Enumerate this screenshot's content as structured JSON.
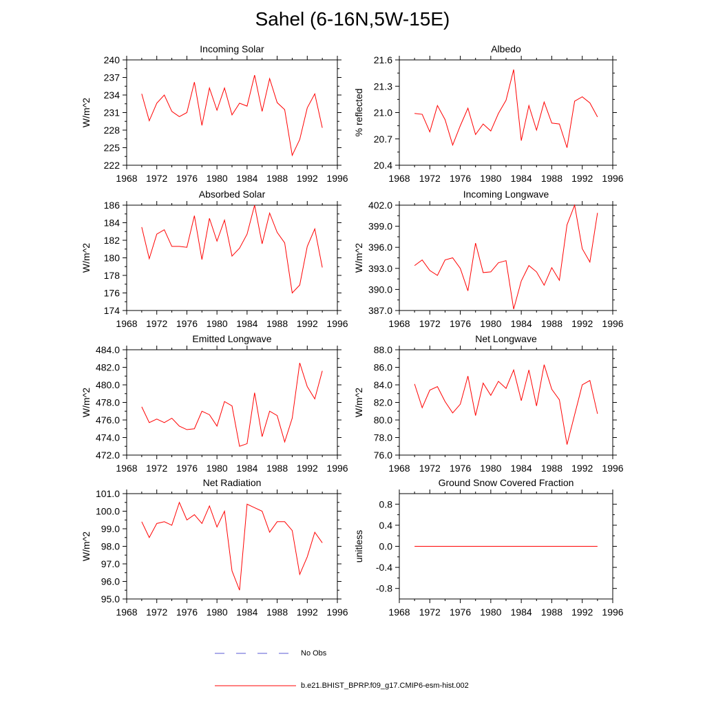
{
  "figure": {
    "title": "Sahel (6-16N,5W-15E)",
    "line_color": "#ff0000",
    "obs_color": "#5a5ad6"
  },
  "legend": {
    "obs_label": "No Obs",
    "model_label": "b.e21.BHIST_BPRP.f09_g17.CMIP6-esm-hist.002"
  },
  "chart_data": [
    {
      "type": "line",
      "title": "Incoming Solar",
      "ylabel": "W/m^2",
      "xlim": [
        1968,
        1996
      ],
      "ylim": [
        222,
        240
      ],
      "yticks": [
        "222",
        "225",
        "228",
        "231",
        "234",
        "237",
        "240"
      ],
      "xticks": [
        "1968",
        "1972",
        "1976",
        "1980",
        "1984",
        "1988",
        "1992",
        "1996"
      ],
      "x": [
        1970,
        1971,
        1972,
        1973,
        1974,
        1975,
        1976,
        1977,
        1978,
        1979,
        1980,
        1981,
        1982,
        1983,
        1984,
        1985,
        1986,
        1987,
        1988,
        1989,
        1990,
        1991,
        1992,
        1993,
        1994
      ],
      "series": [
        {
          "name": "b.e21.BHIST_BPRP.f09_g17.CMIP6-esm-hist.002",
          "values": [
            234.2,
            229.6,
            232.6,
            234.0,
            231.2,
            230.3,
            231.0,
            236.2,
            228.8,
            235.2,
            231.4,
            235.2,
            230.6,
            232.6,
            232.1,
            237.4,
            231.2,
            236.8,
            232.7,
            231.5,
            223.7,
            226.4,
            231.8,
            234.2,
            228.4
          ]
        }
      ]
    },
    {
      "type": "line",
      "title": "Albedo",
      "ylabel": "% reflected",
      "xlim": [
        1968,
        1996
      ],
      "ylim": [
        20.4,
        21.6
      ],
      "yticks": [
        "20.4",
        "20.7",
        "21.0",
        "21.3",
        "21.6"
      ],
      "xticks": [
        "1968",
        "1972",
        "1976",
        "1980",
        "1984",
        "1988",
        "1992",
        "1996"
      ],
      "x": [
        1970,
        1971,
        1972,
        1973,
        1974,
        1975,
        1976,
        1977,
        1978,
        1979,
        1980,
        1981,
        1982,
        1983,
        1984,
        1985,
        1986,
        1987,
        1988,
        1989,
        1990,
        1991,
        1992,
        1993,
        1994
      ],
      "series": [
        {
          "name": "b.e21.BHIST_BPRP.f09_g17.CMIP6-esm-hist.002",
          "values": [
            20.99,
            20.98,
            20.78,
            21.08,
            20.92,
            20.63,
            20.85,
            21.05,
            20.75,
            20.87,
            20.79,
            20.99,
            21.14,
            21.49,
            20.68,
            21.08,
            20.8,
            21.12,
            20.88,
            20.87,
            20.6,
            21.13,
            21.18,
            21.11,
            20.95
          ]
        }
      ]
    },
    {
      "type": "line",
      "title": "Absorbed Solar",
      "ylabel": "W/m^2",
      "xlim": [
        1968,
        1996
      ],
      "ylim": [
        174,
        186
      ],
      "yticks": [
        "174",
        "176",
        "178",
        "180",
        "182",
        "184",
        "186"
      ],
      "xticks": [
        "1968",
        "1972",
        "1976",
        "1980",
        "1984",
        "1988",
        "1992",
        "1996"
      ],
      "x": [
        1970,
        1971,
        1972,
        1973,
        1974,
        1975,
        1976,
        1977,
        1978,
        1979,
        1980,
        1981,
        1982,
        1983,
        1984,
        1985,
        1986,
        1987,
        1988,
        1989,
        1990,
        1991,
        1992,
        1993,
        1994
      ],
      "series": [
        {
          "name": "b.e21.BHIST_BPRP.f09_g17.CMIP6-esm-hist.002",
          "values": [
            183.5,
            179.9,
            182.7,
            183.2,
            181.3,
            181.3,
            181.2,
            184.8,
            179.8,
            184.5,
            181.9,
            184.3,
            180.2,
            181.1,
            182.7,
            186.0,
            181.6,
            185.1,
            182.9,
            181.7,
            176.0,
            176.9,
            181.3,
            183.3,
            178.9
          ]
        }
      ]
    },
    {
      "type": "line",
      "title": "Incoming Longwave",
      "ylabel": "W/m^2",
      "xlim": [
        1968,
        1996
      ],
      "ylim": [
        387,
        402
      ],
      "yticks": [
        "387.0",
        "390.0",
        "393.0",
        "396.0",
        "399.0",
        "402.0"
      ],
      "xticks": [
        "1968",
        "1972",
        "1976",
        "1980",
        "1984",
        "1988",
        "1992",
        "1996"
      ],
      "x": [
        1970,
        1971,
        1972,
        1973,
        1974,
        1975,
        1976,
        1977,
        1978,
        1979,
        1980,
        1981,
        1982,
        1983,
        1984,
        1985,
        1986,
        1987,
        1988,
        1989,
        1990,
        1991,
        1992,
        1993,
        1994
      ],
      "series": [
        {
          "name": "b.e21.BHIST_BPRP.f09_g17.CMIP6-esm-hist.002",
          "values": [
            393.4,
            394.2,
            392.7,
            392.0,
            394.2,
            394.5,
            393.0,
            389.8,
            396.6,
            392.4,
            392.5,
            393.8,
            394.1,
            387.2,
            391.2,
            393.4,
            392.5,
            390.6,
            393.1,
            391.3,
            399.2,
            402.0,
            395.8,
            393.9,
            400.9
          ]
        }
      ]
    },
    {
      "type": "line",
      "title": "Emitted Longwave",
      "ylabel": "W/m^2",
      "xlim": [
        1968,
        1996
      ],
      "ylim": [
        472,
        484
      ],
      "yticks": [
        "472.0",
        "474.0",
        "476.0",
        "478.0",
        "480.0",
        "482.0",
        "484.0"
      ],
      "xticks": [
        "1968",
        "1972",
        "1976",
        "1980",
        "1984",
        "1988",
        "1992",
        "1996"
      ],
      "x": [
        1970,
        1971,
        1972,
        1973,
        1974,
        1975,
        1976,
        1977,
        1978,
        1979,
        1980,
        1981,
        1982,
        1983,
        1984,
        1985,
        1986,
        1987,
        1988,
        1989,
        1990,
        1991,
        1992,
        1993,
        1994
      ],
      "series": [
        {
          "name": "b.e21.BHIST_BPRP.f09_g17.CMIP6-esm-hist.002",
          "values": [
            477.5,
            475.7,
            476.1,
            475.7,
            476.2,
            475.3,
            474.9,
            475.0,
            477.0,
            476.6,
            475.3,
            478.1,
            477.6,
            473.0,
            473.3,
            479.1,
            474.1,
            477.0,
            476.5,
            473.5,
            476.2,
            482.5,
            479.8,
            478.4,
            481.6
          ]
        }
      ]
    },
    {
      "type": "line",
      "title": "Net Longwave",
      "ylabel": "W/m^2",
      "xlim": [
        1968,
        1996
      ],
      "ylim": [
        76,
        88
      ],
      "yticks": [
        "76.0",
        "78.0",
        "80.0",
        "82.0",
        "84.0",
        "86.0",
        "88.0"
      ],
      "xticks": [
        "1968",
        "1972",
        "1976",
        "1980",
        "1984",
        "1988",
        "1992",
        "1996"
      ],
      "x": [
        1970,
        1971,
        1972,
        1973,
        1974,
        1975,
        1976,
        1977,
        1978,
        1979,
        1980,
        1981,
        1982,
        1983,
        1984,
        1985,
        1986,
        1987,
        1988,
        1989,
        1990,
        1991,
        1992,
        1993,
        1994
      ],
      "series": [
        {
          "name": "b.e21.BHIST_BPRP.f09_g17.CMIP6-esm-hist.002",
          "values": [
            84.1,
            81.4,
            83.4,
            83.8,
            82.1,
            80.8,
            81.8,
            85.0,
            80.5,
            84.2,
            82.8,
            84.4,
            83.6,
            85.7,
            82.2,
            85.7,
            81.6,
            86.3,
            83.5,
            82.3,
            77.2,
            80.6,
            84.0,
            84.5,
            80.7
          ]
        }
      ]
    },
    {
      "type": "line",
      "title": "Net Radiation",
      "ylabel": "W/m^2",
      "xlim": [
        1968,
        1996
      ],
      "ylim": [
        95,
        101
      ],
      "yticks": [
        "95.0",
        "96.0",
        "97.0",
        "98.0",
        "99.0",
        "100.0",
        "101.0"
      ],
      "xticks": [
        "1968",
        "1972",
        "1976",
        "1980",
        "1984",
        "1988",
        "1992",
        "1996"
      ],
      "x": [
        1970,
        1971,
        1972,
        1973,
        1974,
        1975,
        1976,
        1977,
        1978,
        1979,
        1980,
        1981,
        1982,
        1983,
        1984,
        1985,
        1986,
        1987,
        1988,
        1989,
        1990,
        1991,
        1992,
        1993,
        1994
      ],
      "series": [
        {
          "name": "b.e21.BHIST_BPRP.f09_g17.CMIP6-esm-hist.002",
          "values": [
            99.4,
            98.5,
            99.3,
            99.4,
            99.2,
            100.5,
            99.5,
            99.8,
            99.3,
            100.3,
            99.1,
            100.0,
            96.6,
            95.5,
            100.4,
            100.2,
            100.0,
            98.8,
            99.4,
            99.4,
            98.9,
            96.4,
            97.4,
            98.8,
            98.2
          ]
        }
      ]
    },
    {
      "type": "line",
      "title": "Ground Snow Covered Fraction",
      "ylabel": "unitless",
      "xlim": [
        1968,
        1996
      ],
      "ylim": [
        -1.0,
        1.0
      ],
      "yticks": [
        "-0.8",
        "-0.4",
        "0.0",
        "0.4",
        "0.8"
      ],
      "xticks": [
        "1968",
        "1972",
        "1976",
        "1980",
        "1984",
        "1988",
        "1992",
        "1996"
      ],
      "x": [
        1970,
        1971,
        1972,
        1973,
        1974,
        1975,
        1976,
        1977,
        1978,
        1979,
        1980,
        1981,
        1982,
        1983,
        1984,
        1985,
        1986,
        1987,
        1988,
        1989,
        1990,
        1991,
        1992,
        1993,
        1994
      ],
      "series": [
        {
          "name": "b.e21.BHIST_BPRP.f09_g17.CMIP6-esm-hist.002",
          "values": [
            0,
            0,
            0,
            0,
            0,
            0,
            0,
            0,
            0,
            0,
            0,
            0,
            0,
            0,
            0,
            0,
            0,
            0,
            0,
            0,
            0,
            0,
            0,
            0,
            0
          ]
        }
      ]
    }
  ]
}
